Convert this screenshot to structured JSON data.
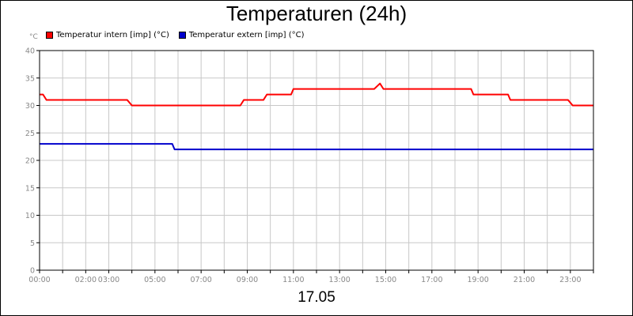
{
  "chart_data": {
    "type": "line",
    "title": "Temperaturen (24h)",
    "ylabel": "°C",
    "xlabel": "17.05",
    "ylim": [
      0,
      40
    ],
    "xlim": [
      0,
      24
    ],
    "y_ticks": [
      0,
      5,
      10,
      15,
      20,
      25,
      30,
      35,
      40
    ],
    "x_tick_labels": [
      {
        "x": 0,
        "label": "00:00"
      },
      {
        "x": 2,
        "label": "02:00"
      },
      {
        "x": 3,
        "label": "03:00"
      },
      {
        "x": 5,
        "label": "05:00"
      },
      {
        "x": 7,
        "label": "07:00"
      },
      {
        "x": 9,
        "label": "09:00"
      },
      {
        "x": 11,
        "label": "11:00"
      },
      {
        "x": 13,
        "label": "13:00"
      },
      {
        "x": 15,
        "label": "15:00"
      },
      {
        "x": 17,
        "label": "17:00"
      },
      {
        "x": 19,
        "label": "19:00"
      },
      {
        "x": 21,
        "label": "21:00"
      },
      {
        "x": 23,
        "label": "23:00"
      }
    ],
    "grid": true,
    "legend": "top-left",
    "series": [
      {
        "name": "Temperatur intern [imp] (°C)",
        "color": "#ff0000",
        "points": [
          [
            0,
            32
          ],
          [
            0.15,
            32
          ],
          [
            0.3,
            31
          ],
          [
            3.8,
            31
          ],
          [
            4.0,
            30
          ],
          [
            8.7,
            30
          ],
          [
            8.85,
            31
          ],
          [
            9.7,
            31
          ],
          [
            9.85,
            32
          ],
          [
            10.9,
            32
          ],
          [
            11.0,
            33
          ],
          [
            14.5,
            33
          ],
          [
            14.75,
            34
          ],
          [
            14.9,
            33
          ],
          [
            18.7,
            33
          ],
          [
            18.8,
            32
          ],
          [
            20.3,
            32
          ],
          [
            20.4,
            31
          ],
          [
            22.9,
            31
          ],
          [
            23.1,
            30
          ],
          [
            24,
            30
          ]
        ]
      },
      {
        "name": "Temperatur extern [imp] (°C)",
        "color": "#0000cc",
        "points": [
          [
            0,
            23
          ],
          [
            5.75,
            23
          ],
          [
            5.85,
            22
          ],
          [
            24,
            22
          ]
        ]
      }
    ]
  }
}
